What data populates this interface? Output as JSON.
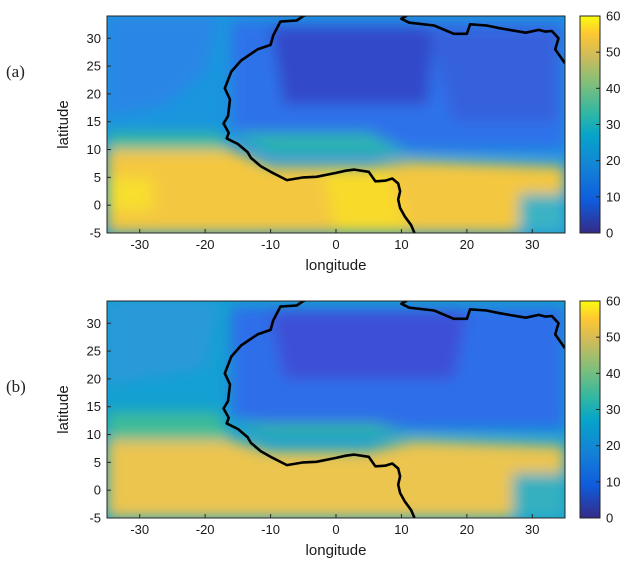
{
  "chart_data": [
    {
      "type": "heatmap",
      "panel_label": "(a)",
      "xlabel": "longitude",
      "ylabel": "latitude",
      "xlim": [
        -35,
        35
      ],
      "ylim": [
        -5,
        34
      ],
      "x_ticks": [
        "-30",
        "-20",
        "-10",
        "0",
        "10",
        "20",
        "30"
      ],
      "y_ticks": [
        "-5",
        "0",
        "5",
        "10",
        "15",
        "20",
        "25",
        "30"
      ],
      "colorbar": {
        "min": 0,
        "max": 60,
        "ticks": [
          "0",
          "10",
          "20",
          "30",
          "40",
          "50",
          "60"
        ],
        "colormap": "parula"
      }
    },
    {
      "type": "heatmap",
      "panel_label": "(b)",
      "xlabel": "longitude",
      "ylabel": "latitude",
      "xlim": [
        -35,
        35
      ],
      "ylim": [
        -5,
        34
      ],
      "x_ticks": [
        "-30",
        "-20",
        "-10",
        "0",
        "10",
        "20",
        "30"
      ],
      "y_ticks": [
        "-5",
        "0",
        "5",
        "10",
        "15",
        "20",
        "25",
        "30"
      ],
      "colorbar": {
        "min": 0,
        "max": 60,
        "ticks": [
          "0",
          "10",
          "20",
          "30",
          "40",
          "50",
          "60"
        ],
        "colormap": "parula"
      }
    }
  ]
}
